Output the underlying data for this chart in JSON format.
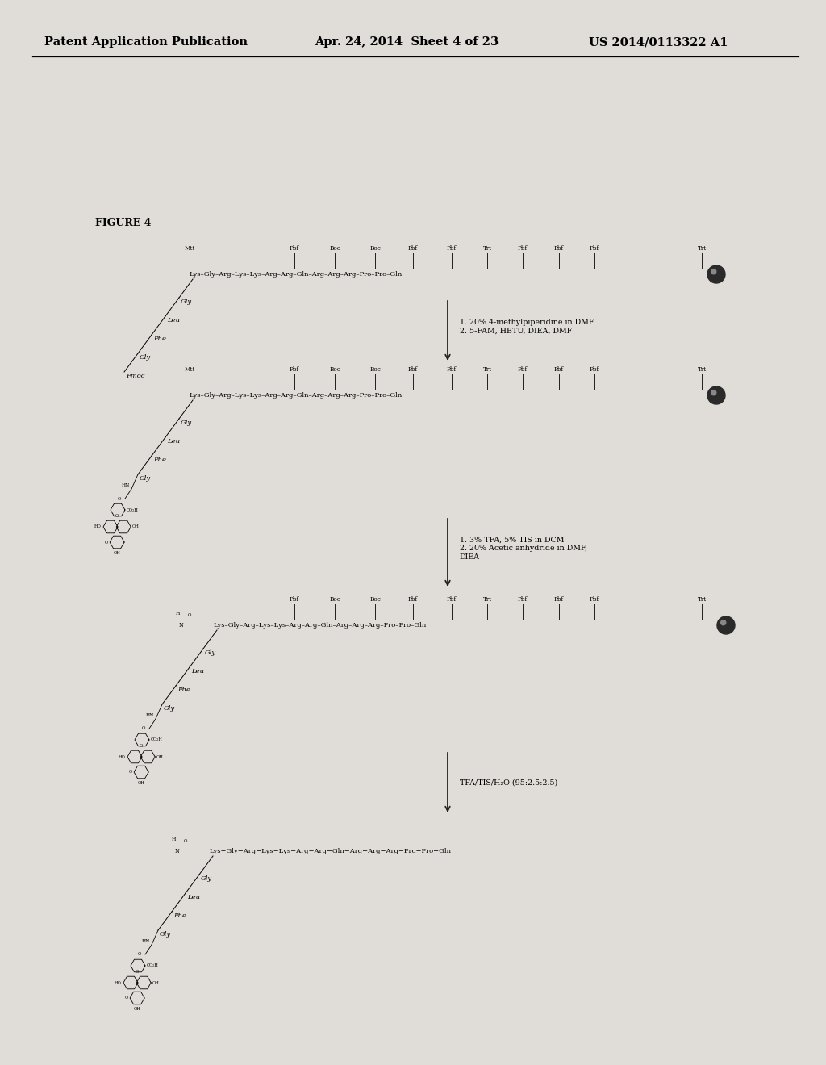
{
  "header_left": "Patent Application Publication",
  "header_mid": "Apr. 24, 2014  Sheet 4 of 23",
  "header_right": "US 2014/0113322 A1",
  "figure_label": "FIGURE 4",
  "background_color": "#e0ddd8",
  "header_fontsize": 10.5,
  "figure_label_fontsize": 9,
  "seq_fontsize": 6.0,
  "pg_fontsize": 5.2,
  "branch_fontsize": 6.0,
  "reaction_fontsize": 6.8,
  "arrow_color": "#222222",
  "step1_pgs": [
    "Mtt",
    "Pbf",
    "Boc",
    "Boc",
    "Pbf",
    "Pbf",
    "Trt",
    "Pbf",
    "Pbf",
    "Pbf",
    "Trt"
  ],
  "step2_pgs": [
    "Mtt",
    "Pbf",
    "Boc",
    "Boc",
    "Pbf",
    "Pbf",
    "Trt",
    "Pbf",
    "Pbf",
    "Pbf",
    "Trt"
  ],
  "step3_pgs": [
    "Pbf",
    "Boc",
    "Boc",
    "Pbf",
    "Pbf",
    "Trt",
    "Pbf",
    "Pbf",
    "Pbf",
    "Trt"
  ],
  "seq_main": "Lys–Gly–Arg–Lys–Lys–Arg–Arg–Gln–Arg–Arg–Arg–Pro–Pro–Gln",
  "seq_final": "Lys−Gly−Arg−Lys−−Lys−Arg−Arg−Gln−−Arg−−Arg−−Arg−−−Pro−−Pro−Gln",
  "branch_residues": [
    "Gly",
    "Leu",
    "Phe",
    "Gly"
  ],
  "step1_branch_last": "Fmoc",
  "reaction1": "1. 20% 4-methylpiperidine in DMF\n2. 5-FAM, HBTU, DIEA, DMF",
  "reaction2": "1. 3% TFA, 5% TIS in DCM\n2. 20% Acetic anhydride in DMF,\nDIEA",
  "reaction3": "TFA/TIS/H₂O (95:2.5:2.5)"
}
